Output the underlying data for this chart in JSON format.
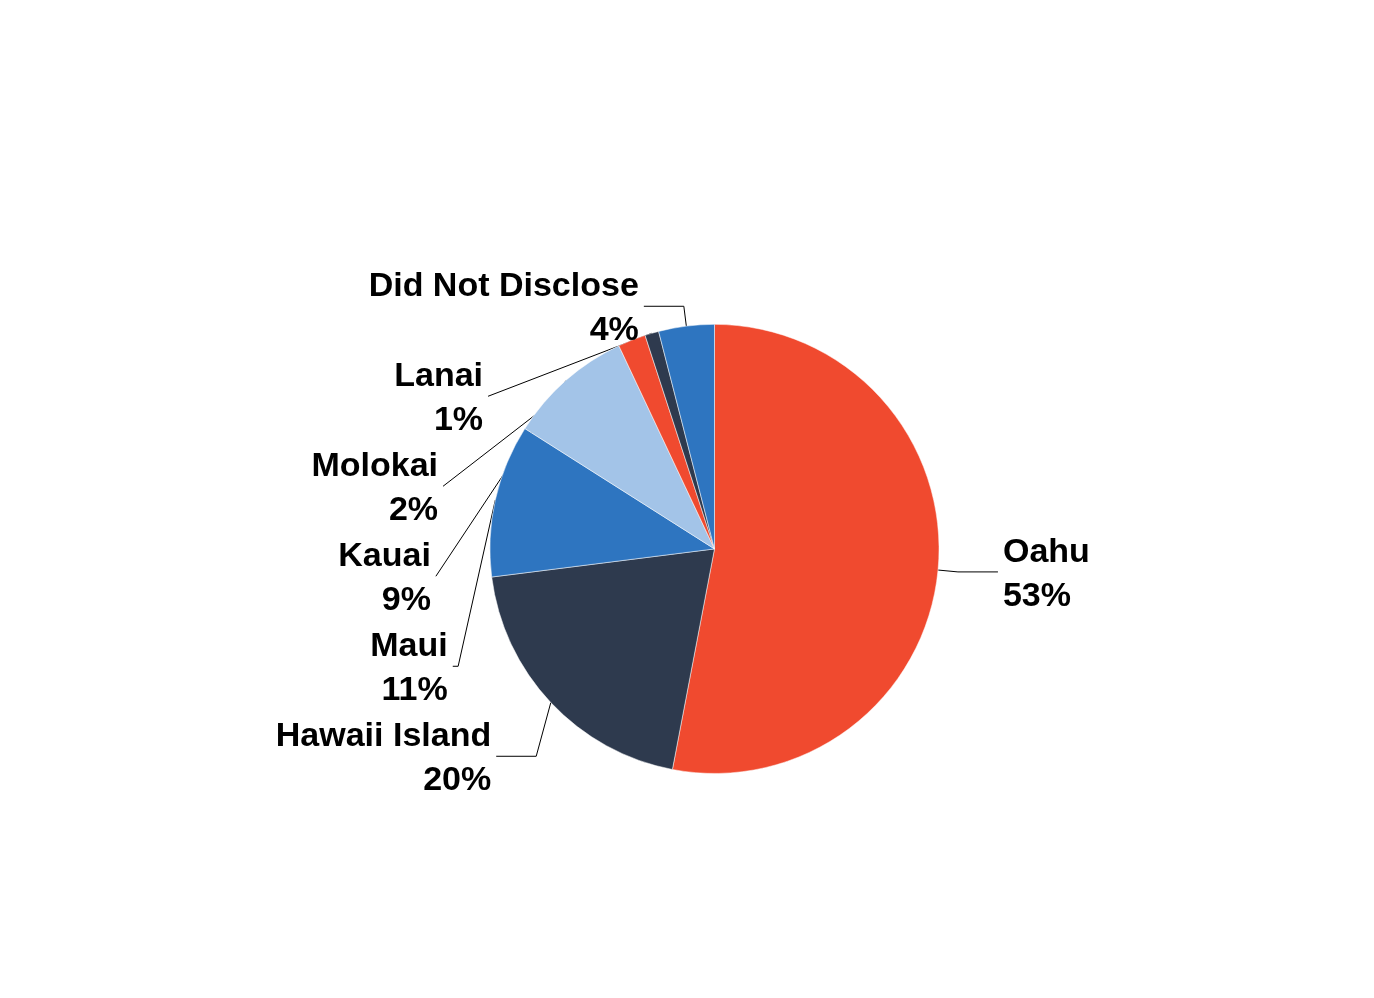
{
  "chart_data": {
    "type": "pie",
    "categories": [
      "Oahu",
      "Hawaii Island",
      "Maui",
      "Kauai",
      "Molokai",
      "Lanai",
      "Did Not Disclose"
    ],
    "values": [
      53,
      20,
      11,
      9,
      2,
      1,
      4
    ],
    "value_labels": [
      "53%",
      "20%",
      "11%",
      "9%",
      "2%",
      "1%",
      "4%"
    ],
    "colors": [
      "#f04a2f",
      "#2e3a4e",
      "#2e75c0",
      "#a3c4e8",
      "#f04a2f",
      "#2e3a4e",
      "#2e75c0"
    ],
    "legend": false
  }
}
